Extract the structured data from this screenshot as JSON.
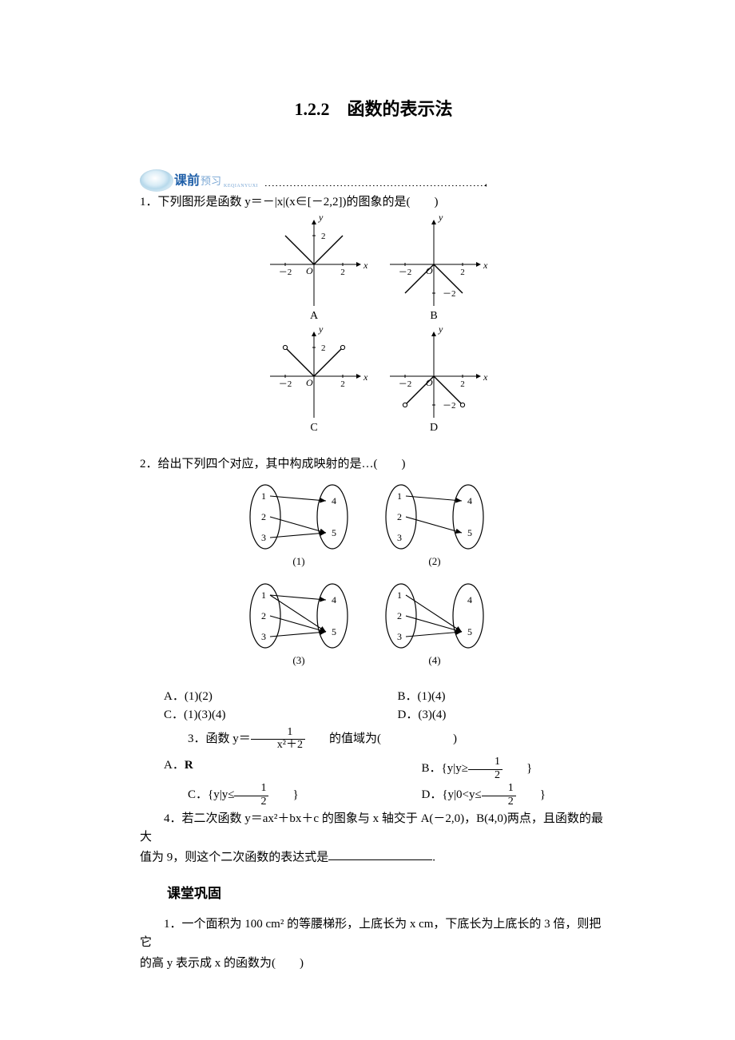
{
  "title": "1.2.2　函数的表示法",
  "banner": {
    "big": "课前",
    "small": "预习",
    "pinyin": "KEQIANYUXI"
  },
  "q1": {
    "stem_prefix": "1．下列图形是函数 y＝－|x|(x∈[－2,2])的图象的是(",
    "stem_suffix": ")",
    "graphs": {
      "xlabel": "x",
      "ylabel": "y",
      "x_ticks": [
        -2,
        2
      ],
      "y_tick_pos": 2,
      "y_tick_neg": -2,
      "axis_color": "#000000",
      "line_width": 1.4,
      "A": {
        "label": "A",
        "segments": [
          [
            -2,
            2,
            0,
            0
          ],
          [
            0,
            0,
            2,
            2
          ]
        ],
        "open_ends": [],
        "y_tick": 2
      },
      "B": {
        "label": "B",
        "segments": [
          [
            -2,
            -2,
            0,
            0
          ],
          [
            0,
            0,
            2,
            -2
          ]
        ],
        "open_ends": [],
        "y_tick": -2
      },
      "C": {
        "label": "C",
        "segments": [
          [
            -2,
            2,
            0,
            0
          ],
          [
            0,
            0,
            2,
            2
          ]
        ],
        "open_ends": [
          [
            -2,
            2
          ],
          [
            2,
            2
          ]
        ],
        "y_tick": 2
      },
      "D": {
        "label": "D",
        "segments": [
          [
            -2,
            -2,
            0,
            0
          ],
          [
            0,
            0,
            2,
            -2
          ]
        ],
        "open_ends": [
          [
            -2,
            -2
          ],
          [
            2,
            -2
          ]
        ],
        "y_tick": -2
      }
    }
  },
  "q2": {
    "stem_prefix": "2．给出下列四个对应，其中构成映射的是…(",
    "stem_suffix": ")",
    "maps": {
      "left_set": [
        1,
        2,
        3
      ],
      "right_set": [
        4,
        5
      ],
      "node_color": "#000000",
      "1": {
        "label": "(1)",
        "arrows": [
          [
            1,
            4
          ],
          [
            2,
            5
          ],
          [
            3,
            5
          ]
        ]
      },
      "2": {
        "label": "(2)",
        "arrows": [
          [
            1,
            4
          ],
          [
            2,
            5
          ]
        ]
      },
      "3": {
        "label": "(3)",
        "arrows": [
          [
            1,
            4
          ],
          [
            1,
            5
          ],
          [
            2,
            5
          ],
          [
            3,
            5
          ]
        ]
      },
      "4": {
        "label": "(4)",
        "arrows": [
          [
            1,
            5
          ],
          [
            2,
            5
          ],
          [
            3,
            5
          ]
        ]
      }
    },
    "opts": {
      "A": "A．(1)(2)",
      "B": "B．(1)(4)",
      "C": "C．(1)(3)(4)",
      "D": "D．(3)(4)"
    }
  },
  "q3": {
    "stem_prefix": "3．函数 y＝",
    "stem_mid": "的值域为(",
    "stem_suffix": ")",
    "frac_num": "1",
    "frac_den": "x²＋2",
    "opts": {
      "A": "A．",
      "A_bold": "R",
      "B_pre": "B．{y|y≥",
      "B_num": "1",
      "B_den": "2",
      "B_suf": "}",
      "C_pre": "C．{y|y≤",
      "C_num": "1",
      "C_den": "2",
      "C_suf": "}",
      "D_pre": "D．{y|0<y≤",
      "D_num": "1",
      "D_den": "2",
      "D_suf": "}"
    }
  },
  "q4": {
    "line1": "4．若二次函数 y＝ax²＋bx＋c 的图象与 x 轴交于 A(－2,0)，B(4,0)两点，且函数的最大",
    "line2_pre": "值为 9，则这个二次函数的表达式是",
    "line2_suf": "."
  },
  "section2": "课堂巩固",
  "s2q1": {
    "line1": "1．一个面积为 100 cm² 的等腰梯形，上底长为 x cm，下底长为上底长的 3 倍，则把它",
    "line2_pre": "的高 y 表示成 x 的函数为(",
    "line2_suf": ")"
  }
}
